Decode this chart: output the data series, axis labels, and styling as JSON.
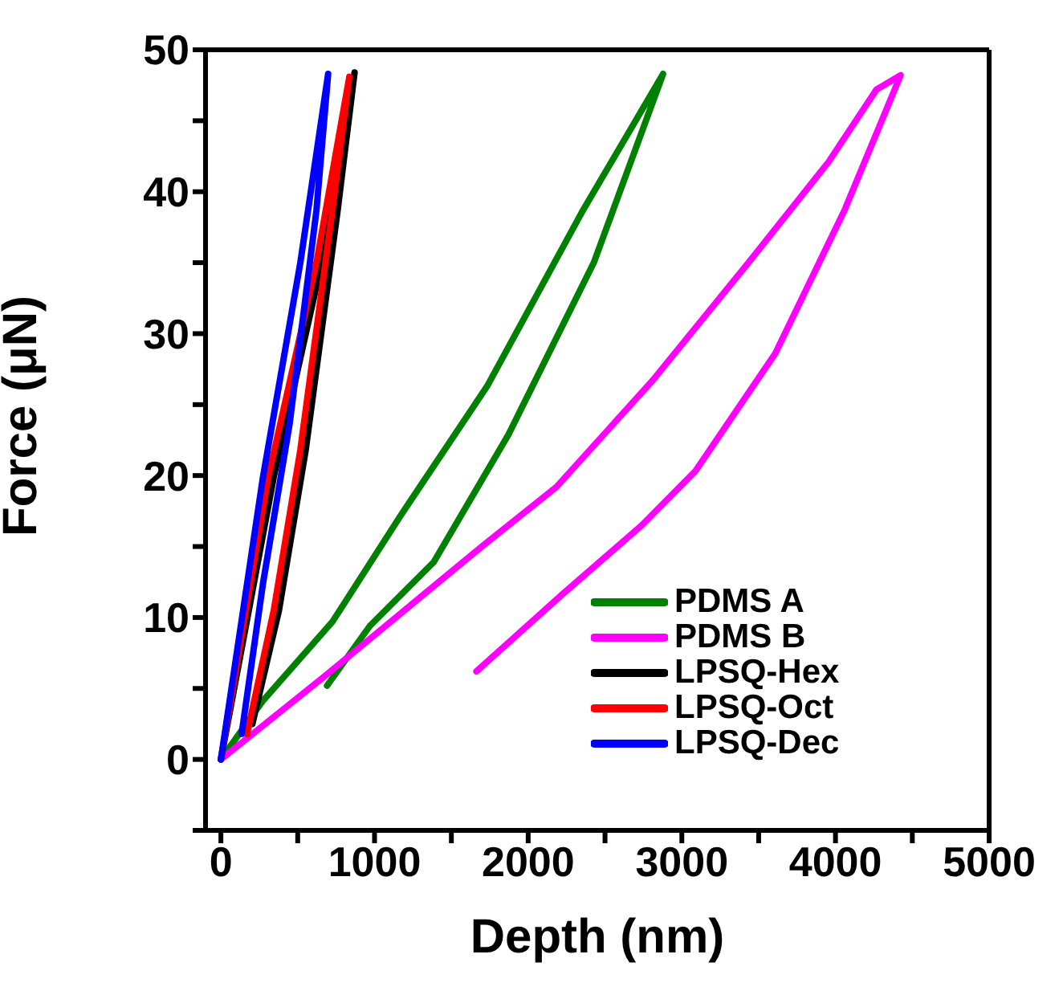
{
  "chart_data": {
    "type": "line",
    "xlabel": "Depth (nm)",
    "ylabel": "Force (μN)",
    "xlim": [
      -100,
      5000
    ],
    "xticks": [
      0,
      {
        "value": 500,
        "label": null
      },
      1000,
      {
        "value": 1500,
        "label": null
      },
      2000,
      {
        "value": 2500,
        "label": null
      },
      3000,
      {
        "value": 3500,
        "label": null
      },
      4000,
      {
        "value": 4500,
        "label": null
      },
      5000
    ],
    "ylim": [
      -5,
      50
    ],
    "yticks": [
      {
        "value": -5,
        "label": null
      },
      0,
      {
        "value": 5,
        "label": null
      },
      10,
      {
        "value": 15,
        "label": null
      },
      20,
      {
        "value": 25,
        "label": null
      },
      30,
      {
        "value": 35,
        "label": null
      },
      40,
      {
        "value": 45,
        "label": null
      },
      50
    ],
    "legend": "bottom right",
    "marker": "none",
    "line_style": "solid",
    "series": [
      {
        "name": "PDMS A",
        "color": "#008000",
        "x": [
          0,
          271,
          726,
          1177,
          1733,
          2357,
          2878,
          2427,
          1872,
          1385,
          969,
          691
        ],
        "values": [
          0,
          4.1,
          9.7,
          17.3,
          26.3,
          38.7,
          48.3,
          35,
          22.9,
          13.9,
          9.4,
          5.2
        ]
      },
      {
        "name": "PDMS B",
        "color": "#ff00ff",
        "x": [
          0,
          691,
          1698,
          2184,
          2810,
          3434,
          3955,
          4267,
          4424,
          4059,
          3608,
          3087,
          2740,
          2219,
          1663
        ],
        "values": [
          0,
          6.0,
          15.0,
          19.2,
          26.7,
          35,
          42.1,
          47.2,
          48.2,
          38.7,
          28.6,
          20.3,
          16.5,
          11.6,
          6.2
        ]
      },
      {
        "name": "LPSQ-Hex",
        "color": "#000000",
        "x": [
          0,
          344,
          656,
          870,
          760,
          552,
          378,
          205
        ],
        "values": [
          0,
          19.9,
          35,
          48.4,
          38.7,
          21.8,
          10.5,
          2.5
        ]
      },
      {
        "name": "LPSQ-Oct",
        "color": "#ff0000",
        "x": [
          0,
          309,
          622,
          836,
          726,
          517,
          344,
          170
        ],
        "values": [
          0,
          19.9,
          35,
          48.1,
          38.7,
          21.8,
          10.5,
          1.8
        ]
      },
      {
        "name": "LPSQ-Dec",
        "color": "#0000ff",
        "x": [
          0,
          274,
          517,
          698,
          622,
          448,
          274,
          135
        ],
        "values": [
          0,
          19.9,
          35,
          48.3,
          38.7,
          23.7,
          12.4,
          1.8
        ]
      }
    ]
  }
}
